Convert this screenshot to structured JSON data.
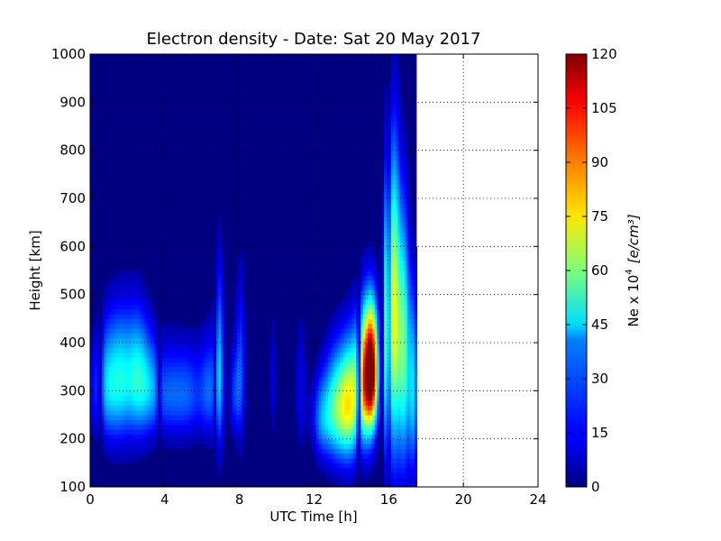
{
  "chart_data": {
    "type": "heatmap",
    "title": "Electron density - Date: Sat 20 May 2017",
    "xlabel": "UTC Time [h]",
    "ylabel": "Height [km]",
    "colorbar_label": "Ne x 10",
    "colorbar_label_sup": "4",
    "colorbar_unit": "[e/cm³]",
    "xlim": [
      0,
      24
    ],
    "ylim": [
      100,
      1000
    ],
    "clim": [
      0,
      120
    ],
    "colormap": "jet",
    "grid": true,
    "data_end_hour": 17.5,
    "x_ticks": [
      "0",
      "4",
      "8",
      "12",
      "16",
      "20",
      "24"
    ],
    "y_ticks": [
      "100",
      "200",
      "300",
      "400",
      "500",
      "600",
      "700",
      "800",
      "900",
      "1000"
    ],
    "colorbar_ticks": [
      "0",
      "15",
      "30",
      "45",
      "60",
      "75",
      "90",
      "105",
      "120"
    ],
    "peaks": [
      {
        "hour": 0.2,
        "width_h": 0.5,
        "peak_height_km": 300,
        "thickness_km": 120,
        "value": 12
      },
      {
        "hour": 0.9,
        "width_h": 0.5,
        "peak_height_km": 310,
        "thickness_km": 140,
        "value": 30
      },
      {
        "hour": 1.6,
        "width_h": 0.6,
        "peak_height_km": 320,
        "thickness_km": 150,
        "value": 40
      },
      {
        "hour": 2.5,
        "width_h": 0.6,
        "peak_height_km": 325,
        "thickness_km": 150,
        "value": 40
      },
      {
        "hour": 3.2,
        "width_h": 0.6,
        "peak_height_km": 305,
        "thickness_km": 120,
        "value": 26
      },
      {
        "hour": 4.2,
        "width_h": 0.8,
        "peak_height_km": 290,
        "thickness_km": 110,
        "value": 22
      },
      {
        "hour": 5.3,
        "width_h": 0.8,
        "peak_height_km": 290,
        "thickness_km": 110,
        "value": 22
      },
      {
        "hour": 6.4,
        "width_h": 0.5,
        "peak_height_km": 300,
        "thickness_km": 120,
        "value": 24
      },
      {
        "hour": 6.9,
        "width_h": 0.25,
        "peak_height_km": 350,
        "thickness_km": 220,
        "value": 34
      },
      {
        "hour": 7.7,
        "width_h": 0.4,
        "peak_height_km": 290,
        "thickness_km": 100,
        "value": 18
      },
      {
        "hour": 8.1,
        "width_h": 0.3,
        "peak_height_km": 350,
        "thickness_km": 200,
        "value": 24
      },
      {
        "hour": 9.8,
        "width_h": 0.2,
        "peak_height_km": 320,
        "thickness_km": 150,
        "value": 10
      },
      {
        "hour": 11.3,
        "width_h": 0.3,
        "peak_height_km": 300,
        "thickness_km": 160,
        "value": 12
      },
      {
        "hour": 12.4,
        "width_h": 0.5,
        "peak_height_km": 240,
        "thickness_km": 100,
        "value": 28
      },
      {
        "hour": 13.2,
        "width_h": 0.6,
        "peak_height_km": 260,
        "thickness_km": 130,
        "value": 52
      },
      {
        "hour": 13.9,
        "width_h": 0.5,
        "peak_height_km": 270,
        "thickness_km": 140,
        "value": 60
      },
      {
        "hour": 14.7,
        "width_h": 0.5,
        "peak_height_km": 320,
        "thickness_km": 160,
        "value": 80
      },
      {
        "hour": 15.1,
        "width_h": 0.35,
        "peak_height_km": 340,
        "thickness_km": 140,
        "value": 98
      },
      {
        "hour": 15.9,
        "width_h": 0.2,
        "peak_height_km": 420,
        "thickness_km": 320,
        "value": 62
      },
      {
        "hour": 16.3,
        "width_h": 0.3,
        "peak_height_km": 450,
        "thickness_km": 360,
        "value": 70
      },
      {
        "hour": 16.8,
        "width_h": 0.3,
        "peak_height_km": 380,
        "thickness_km": 300,
        "value": 56
      },
      {
        "hour": 17.3,
        "width_h": 0.25,
        "peak_height_km": 300,
        "thickness_km": 220,
        "value": 40
      }
    ],
    "troughs": [
      {
        "hour": 0.55,
        "width_h": 0.12
      },
      {
        "hour": 3.7,
        "width_h": 0.12
      },
      {
        "hour": 6.7,
        "width_h": 0.1
      },
      {
        "hour": 7.4,
        "width_h": 0.12
      },
      {
        "hour": 8.5,
        "width_h": 0.3
      },
      {
        "hour": 14.4,
        "width_h": 0.12
      },
      {
        "hour": 15.6,
        "width_h": 0.12
      },
      {
        "hour": 16.0,
        "width_h": 0.08
      }
    ]
  }
}
